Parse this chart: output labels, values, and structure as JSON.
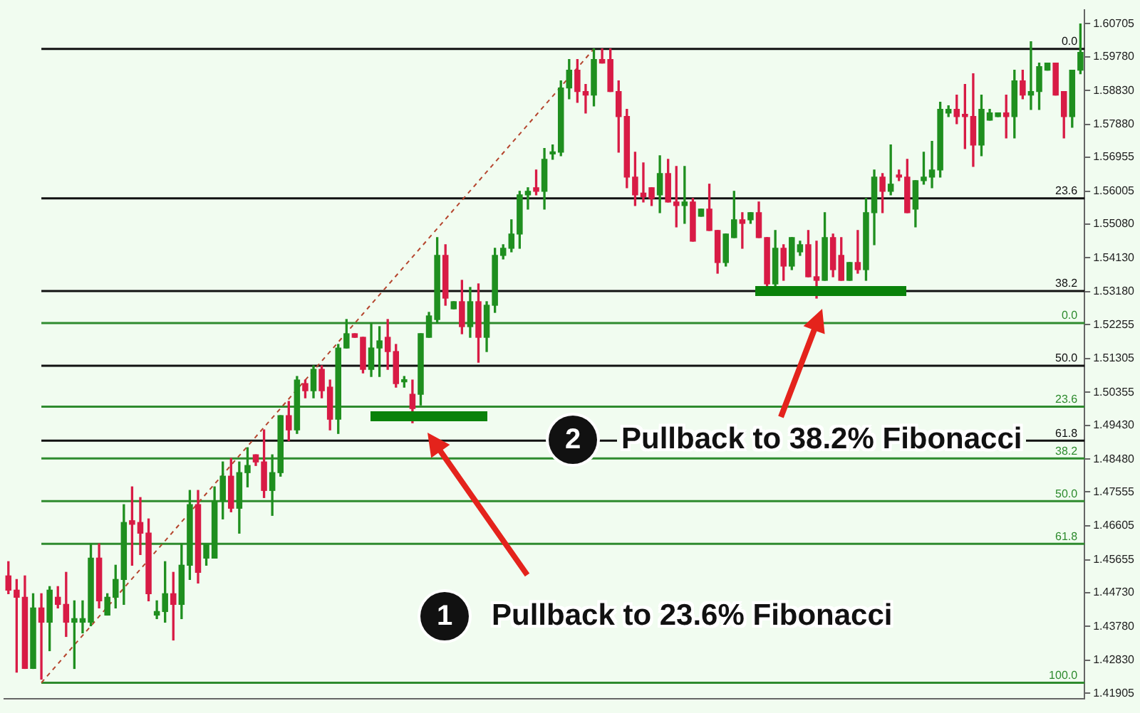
{
  "chart_data": {
    "type": "candlestick",
    "categories": [
      null,
      null,
      null,
      null,
      null,
      null,
      null,
      null,
      null,
      null,
      null,
      null,
      null,
      null,
      null,
      null,
      null,
      null,
      null,
      null,
      null,
      null,
      null,
      null,
      null,
      null,
      null,
      null,
      null,
      null,
      null,
      null,
      null,
      null,
      null,
      null,
      null,
      null,
      null,
      null,
      null,
      null,
      null,
      null,
      null,
      null,
      null,
      null,
      null,
      null,
      null,
      null,
      null,
      null,
      null,
      null,
      null,
      null,
      null,
      null,
      null,
      null,
      null,
      null,
      null,
      null,
      null,
      null,
      null,
      null,
      null,
      null,
      null,
      null,
      null,
      null,
      null,
      null,
      null,
      null,
      null,
      null,
      null,
      null,
      null,
      null,
      null,
      null,
      null,
      null,
      null,
      null,
      null,
      null,
      null,
      null,
      null,
      null,
      null,
      null,
      null,
      null,
      null,
      null,
      null,
      null,
      null,
      null,
      null,
      null,
      null,
      null,
      null,
      null,
      null,
      null,
      null,
      null,
      null,
      null,
      null,
      null,
      null,
      null,
      null,
      null,
      null,
      null,
      null,
      null,
      null
    ],
    "ohlc": [
      [
        1.452,
        1.456,
        1.447,
        1.448
      ],
      [
        1.448,
        1.451,
        1.425,
        1.446
      ],
      [
        1.446,
        1.452,
        1.426,
        1.426
      ],
      [
        1.426,
        1.447,
        1.426,
        1.443
      ],
      [
        1.443,
        1.447,
        1.423,
        1.439
      ],
      [
        1.439,
        1.449,
        1.431,
        1.448
      ],
      [
        1.446,
        1.449,
        1.443,
        1.444
      ],
      [
        1.444,
        1.453,
        1.435,
        1.439
      ],
      [
        1.439,
        1.445,
        1.426,
        1.44
      ],
      [
        1.439,
        1.445,
        1.436,
        1.44
      ],
      [
        1.439,
        1.461,
        1.438,
        1.457
      ],
      [
        1.457,
        1.461,
        1.443,
        1.445
      ],
      [
        1.441,
        1.447,
        1.441,
        1.446
      ],
      [
        1.446,
        1.455,
        1.443,
        1.451
      ],
      [
        1.451,
        1.472,
        1.444,
        1.467
      ],
      [
        1.4675,
        1.477,
        1.455,
        1.4665
      ],
      [
        1.467,
        1.474,
        1.458,
        1.464
      ],
      [
        1.464,
        1.468,
        1.445,
        1.447
      ],
      [
        1.441,
        1.445,
        1.44,
        1.442
      ],
      [
        1.442,
        1.456,
        1.439,
        1.447
      ],
      [
        1.447,
        1.453,
        1.434,
        1.444
      ],
      [
        1.444,
        1.461,
        1.44,
        1.455
      ],
      [
        1.455,
        1.476,
        1.451,
        1.472
      ],
      [
        1.472,
        1.476,
        1.45,
        1.453
      ],
      [
        1.457,
        1.461,
        1.455,
        1.461
      ],
      [
        1.457,
        1.477,
        1.457,
        1.473
      ],
      [
        1.473,
        1.484,
        1.468,
        1.48
      ],
      [
        1.48,
        1.485,
        1.47,
        1.471
      ],
      [
        1.471,
        1.484,
        1.464,
        1.481
      ],
      [
        1.481,
        1.488,
        1.477,
        1.483
      ],
      [
        1.486,
        1.486,
        1.483,
        1.484
      ],
      [
        1.484,
        1.493,
        1.474,
        1.476
      ],
      [
        1.476,
        1.486,
        1.469,
        1.481
      ],
      [
        1.481,
        1.497,
        1.48,
        1.497
      ],
      [
        1.497,
        1.501,
        1.49,
        1.493
      ],
      [
        1.493,
        1.508,
        1.492,
        1.507
      ],
      [
        1.506,
        1.507,
        1.502,
        1.504
      ],
      [
        1.504,
        1.511,
        1.502,
        1.51
      ],
      [
        1.51,
        1.511,
        1.502,
        1.504
      ],
      [
        1.505,
        1.507,
        1.493,
        1.496
      ],
      [
        1.496,
        1.517,
        1.492,
        1.516
      ],
      [
        1.516,
        1.524,
        1.516,
        1.52
      ],
      [
        1.52,
        1.52,
        1.519,
        1.519
      ],
      [
        1.519,
        1.519,
        1.509,
        1.51
      ],
      [
        1.51,
        1.523,
        1.508,
        1.516
      ],
      [
        1.516,
        1.522,
        1.508,
        1.518
      ],
      [
        1.519,
        1.524,
        1.51,
        1.515
      ],
      [
        1.515,
        1.517,
        1.505,
        1.506
      ],
      [
        1.5065,
        1.508,
        1.505,
        1.507
      ],
      [
        1.503,
        1.507,
        1.495,
        1.499
      ],
      [
        1.503,
        1.52,
        1.5,
        1.52
      ],
      [
        1.519,
        1.526,
        1.519,
        1.525
      ],
      [
        1.524,
        1.547,
        1.523,
        1.542
      ],
      [
        1.542,
        1.545,
        1.528,
        1.53
      ],
      [
        1.527,
        1.529,
        1.527,
        1.529
      ],
      [
        1.529,
        1.535,
        1.52,
        1.522
      ],
      [
        1.522,
        1.533,
        1.519,
        1.529
      ],
      [
        1.529,
        1.534,
        1.512,
        1.519
      ],
      [
        1.519,
        1.529,
        1.515,
        1.528
      ],
      [
        1.528,
        1.544,
        1.526,
        1.542
      ],
      [
        1.542,
        1.545,
        1.541,
        1.544
      ],
      [
        1.544,
        1.552,
        1.543,
        1.548
      ],
      [
        1.548,
        1.56,
        1.544,
        1.559
      ],
      [
        1.559,
        1.561,
        1.555,
        1.56
      ],
      [
        1.561,
        1.566,
        1.559,
        1.56
      ],
      [
        1.56,
        1.572,
        1.555,
        1.569
      ],
      [
        1.5705,
        1.573,
        1.569,
        1.571
      ],
      [
        1.571,
        1.591,
        1.57,
        1.589
      ],
      [
        1.589,
        1.597,
        1.586,
        1.594
      ],
      [
        1.594,
        1.597,
        1.585,
        1.588
      ],
      [
        1.588,
        1.59,
        1.582,
        1.587
      ],
      [
        1.587,
        1.6,
        1.584,
        1.597
      ],
      [
        1.597,
        1.6,
        1.596,
        1.596
      ],
      [
        1.597,
        1.6,
        1.588,
        1.588
      ],
      [
        1.588,
        1.591,
        1.571,
        1.581
      ],
      [
        1.581,
        1.583,
        1.561,
        1.564
      ],
      [
        1.564,
        1.571,
        1.556,
        1.559
      ],
      [
        1.5595,
        1.568,
        1.557,
        1.5585
      ],
      [
        1.561,
        1.561,
        1.556,
        1.558
      ],
      [
        1.559,
        1.57,
        1.554,
        1.565
      ],
      [
        1.565,
        1.569,
        1.557,
        1.557
      ],
      [
        1.557,
        1.567,
        1.55,
        1.556
      ],
      [
        1.556,
        1.567,
        1.551,
        1.557
      ],
      [
        1.557,
        1.558,
        1.546,
        1.546
      ],
      [
        1.553,
        1.555,
        1.553,
        1.555
      ],
      [
        1.555,
        1.562,
        1.549,
        1.549
      ],
      [
        1.549,
        1.549,
        1.537,
        1.54
      ],
      [
        1.54,
        1.548,
        1.539,
        1.548
      ],
      [
        1.547,
        1.56,
        1.547,
        1.552
      ],
      [
        1.552,
        1.554,
        1.544,
        1.551
      ],
      [
        1.552,
        1.554,
        1.551,
        1.554
      ],
      [
        1.554,
        1.557,
        1.547,
        1.547
      ],
      [
        1.547,
        1.547,
        1.533,
        1.534
      ],
      [
        1.534,
        1.549,
        1.533,
        1.544
      ],
      [
        1.544,
        1.545,
        1.535,
        1.539
      ],
      [
        1.539,
        1.547,
        1.538,
        1.547
      ],
      [
        1.543,
        1.546,
        1.542,
        1.545
      ],
      [
        1.545,
        1.549,
        1.536,
        1.536
      ],
      [
        1.536,
        1.546,
        1.53,
        1.535
      ],
      [
        1.535,
        1.554,
        1.535,
        1.547
      ],
      [
        1.547,
        1.548,
        1.536,
        1.538
      ],
      [
        1.542,
        1.547,
        1.535,
        1.535
      ],
      [
        1.535,
        1.54,
        1.535,
        1.54
      ],
      [
        1.54,
        1.549,
        1.537,
        1.538
      ],
      [
        1.538,
        1.558,
        1.535,
        1.554
      ],
      [
        1.554,
        1.566,
        1.545,
        1.564
      ],
      [
        1.564,
        1.565,
        1.554,
        1.56
      ],
      [
        1.56,
        1.573,
        1.559,
        1.562
      ],
      [
        1.5645,
        1.566,
        1.563,
        1.564
      ],
      [
        1.564,
        1.569,
        1.554,
        1.554
      ],
      [
        1.555,
        1.563,
        1.55,
        1.563
      ],
      [
        1.563,
        1.571,
        1.562,
        1.564
      ],
      [
        1.564,
        1.574,
        1.561,
        1.566
      ],
      [
        1.566,
        1.585,
        1.564,
        1.583
      ],
      [
        1.582,
        1.584,
        1.581,
        1.583
      ],
      [
        1.583,
        1.587,
        1.579,
        1.581
      ],
      [
        1.5815,
        1.59,
        1.572,
        1.581
      ],
      [
        1.581,
        1.593,
        1.567,
        1.573
      ],
      [
        1.573,
        1.587,
        1.57,
        1.583
      ],
      [
        1.58,
        1.583,
        1.58,
        1.582
      ],
      [
        1.581,
        1.582,
        1.581,
        1.582
      ],
      [
        1.582,
        1.587,
        1.575,
        1.581
      ],
      [
        1.581,
        1.594,
        1.575,
        1.591
      ],
      [
        1.591,
        1.594,
        1.586,
        1.587
      ],
      [
        1.587,
        1.602,
        1.583,
        1.588
      ],
      [
        1.588,
        1.596,
        1.583,
        1.595
      ],
      [
        1.594,
        1.596,
        1.594,
        1.596
      ],
      [
        1.596,
        1.596,
        1.587,
        1.587
      ],
      [
        1.588,
        1.588,
        1.575,
        1.581
      ],
      [
        1.581,
        1.594,
        1.578,
        1.594
      ],
      [
        1.594,
        1.607,
        1.593,
        1.599
      ]
    ],
    "colors": [
      "#d81b45",
      "#d81b45",
      "#d81b45",
      "#1f8f1f",
      "#d81b45",
      "#1f8f1f",
      "#d81b45",
      "#d81b45",
      "#1f8f1f",
      "#1f8f1f",
      "#1f8f1f",
      "#d81b45",
      "#1f8f1f",
      "#1f8f1f",
      "#1f8f1f",
      "#d81b45",
      "#d81b45",
      "#d81b45",
      "#1f8f1f",
      "#1f8f1f",
      "#d81b45",
      "#1f8f1f",
      "#1f8f1f",
      "#d81b45",
      "#1f8f1f",
      "#1f8f1f",
      "#1f8f1f",
      "#d81b45",
      "#1f8f1f",
      "#1f8f1f",
      "#d81b45",
      "#d81b45",
      "#1f8f1f",
      "#1f8f1f",
      "#d81b45",
      "#1f8f1f",
      "#d81b45",
      "#1f8f1f",
      "#d81b45",
      "#d81b45",
      "#1f8f1f",
      "#1f8f1f",
      "#d81b45",
      "#d81b45",
      "#1f8f1f",
      "#1f8f1f",
      "#d81b45",
      "#d81b45",
      "#1f8f1f",
      "#d81b45",
      "#1f8f1f",
      "#1f8f1f",
      "#1f8f1f",
      "#d81b45",
      "#1f8f1f",
      "#d81b45",
      "#1f8f1f",
      "#d81b45",
      "#1f8f1f",
      "#1f8f1f",
      "#1f8f1f",
      "#1f8f1f",
      "#1f8f1f",
      "#1f8f1f",
      "#d81b45",
      "#1f8f1f",
      "#1f8f1f",
      "#1f8f1f",
      "#1f8f1f",
      "#d81b45",
      "#d81b45",
      "#1f8f1f",
      "#d81b45",
      "#d81b45",
      "#d81b45",
      "#d81b45",
      "#d81b45",
      "#d81b45",
      "#d81b45",
      "#1f8f1f",
      "#d81b45",
      "#d81b45",
      "#1f8f1f",
      "#d81b45",
      "#1f8f1f",
      "#d81b45",
      "#d81b45",
      "#1f8f1f",
      "#1f8f1f",
      "#d81b45",
      "#1f8f1f",
      "#d81b45",
      "#d81b45",
      "#1f8f1f",
      "#d81b45",
      "#1f8f1f",
      "#1f8f1f",
      "#d81b45",
      "#d81b45",
      "#1f8f1f",
      "#d81b45",
      "#d81b45",
      "#1f8f1f",
      "#d81b45",
      "#1f8f1f",
      "#1f8f1f",
      "#d81b45",
      "#1f8f1f",
      "#d81b45",
      "#d81b45",
      "#1f8f1f",
      "#1f8f1f",
      "#1f8f1f",
      "#1f8f1f",
      "#1f8f1f",
      "#d81b45",
      "#d81b45",
      "#d81b45",
      "#1f8f1f",
      "#1f8f1f",
      "#1f8f1f",
      "#d81b45",
      "#1f8f1f",
      "#d81b45",
      "#1f8f1f",
      "#1f8f1f",
      "#1f8f1f",
      "#d81b45",
      "#d81b45",
      "#1f8f1f",
      "#1f8f1f"
    ],
    "series": [
      {
        "type": "line",
        "color": "#b5452e",
        "line_style": "dashed",
        "values": [
          null,
          null,
          null,
          null,
          1.422,
          null,
          null,
          null,
          null,
          null,
          null,
          null,
          null,
          null,
          null,
          null,
          null,
          null,
          null,
          null,
          null,
          null,
          null,
          null,
          null,
          null,
          null,
          null,
          null,
          null,
          null,
          null,
          null,
          null,
          null,
          null,
          null,
          null,
          null,
          null,
          null,
          null,
          null,
          null,
          null,
          null,
          null,
          null,
          null,
          null,
          null,
          null,
          null,
          null,
          null,
          null,
          null,
          null,
          null,
          null,
          null,
          null,
          null,
          null,
          null,
          null,
          null,
          null,
          null,
          null,
          null,
          1.6,
          null,
          null,
          null,
          null,
          null,
          null,
          null,
          null,
          null,
          null,
          null,
          null,
          null,
          null,
          null,
          null,
          null,
          null,
          null,
          null,
          null,
          null,
          null,
          null,
          null,
          null,
          null,
          null,
          null,
          null,
          null,
          null,
          null,
          null,
          null,
          null,
          null,
          null,
          null,
          null,
          null,
          null,
          null,
          null,
          null,
          null,
          null,
          null,
          null,
          null,
          null,
          null,
          null,
          null,
          null,
          null,
          null,
          null,
          null
        ]
      }
    ],
    "ylim": [
      1.4175,
      1.611
    ],
    "yticks": [
      1.60705,
      {
        "value": 1.5978,
        "label": "1.59780"
      },
      {
        "value": 1.5883,
        "label": "1.58830"
      },
      {
        "value": 1.5788,
        "label": "1.57880"
      },
      1.56955,
      1.56005,
      {
        "value": 1.5508,
        "label": "1.55080"
      },
      {
        "value": 1.5413,
        "label": "1.54130"
      },
      {
        "value": 1.5318,
        "label": "1.53180"
      },
      1.52255,
      1.51305,
      1.50355,
      {
        "value": 1.4943,
        "label": "1.49430"
      },
      {
        "value": 1.4848,
        "label": "1.48480"
      },
      1.47555,
      1.46605,
      1.45655,
      {
        "value": 1.4473,
        "label": "1.44730"
      },
      {
        "value": 1.4378,
        "label": "1.43780"
      },
      {
        "value": 1.4283,
        "label": "1.42830"
      },
      1.41905
    ],
    "tick_labels": "y",
    "legend": false,
    "ref_lines": [
      {
        "axis": "y",
        "value": 1.6,
        "color": "#111111"
      },
      {
        "axis": "y",
        "value": 1.558,
        "color": "#111111"
      },
      {
        "axis": "y",
        "value": 1.532,
        "color": "#111111"
      },
      {
        "axis": "y",
        "value": 1.511,
        "color": "#111111"
      },
      {
        "axis": "y",
        "value": 1.49,
        "color": "#111111"
      },
      {
        "axis": "y",
        "value": 1.523,
        "color": "#2e8b2e"
      },
      {
        "axis": "y",
        "value": 1.4995,
        "color": "#2e8b2e"
      },
      {
        "axis": "y",
        "value": 1.485,
        "color": "#2e8b2e"
      },
      {
        "axis": "y",
        "value": 1.473,
        "color": "#2e8b2e"
      },
      {
        "axis": "y",
        "value": 1.461,
        "color": "#2e8b2e"
      },
      {
        "axis": "y",
        "value": 1.422,
        "color": "#2e8b2e"
      }
    ],
    "annotations": [
      "1",
      "Pullback to 23.6% Fibonacci",
      "2",
      "Pullback to 38.2% Fibonacci",
      {
        "text": "0.0",
        "y": 1.6
      },
      {
        "text": "23.6",
        "y": 1.558
      },
      {
        "text": "38.2",
        "y": 1.532
      },
      {
        "text": "50.0",
        "y": 1.511
      },
      {
        "text": "61.8",
        "y": 1.49
      },
      {
        "text": "0.0",
        "y": 1.523
      },
      {
        "text": "23.6",
        "y": 1.4995
      },
      {
        "text": "38.2",
        "y": 1.485
      },
      {
        "text": "50.0",
        "y": 1.473
      },
      {
        "text": "61.8",
        "y": 1.461
      },
      {
        "text": "100.0",
        "y": 1.422
      }
    ]
  }
}
